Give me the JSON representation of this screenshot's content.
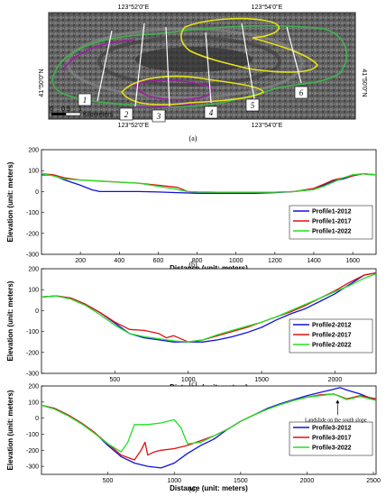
{
  "map": {
    "coord_top_left": "123°52'0\"E",
    "coord_top_right": "123°54'0\"E",
    "coord_bottom_left": "123°52'0\"E",
    "coord_bottom_right": "123°54'0\"E",
    "coord_left": "41°50'0\"N",
    "coord_right": "41°50'0\"N",
    "scale_ticks": [
      "0",
      "0.5",
      "1"
    ],
    "scale_unit": "Kilometers",
    "profile_labels": [
      "1",
      "2",
      "3",
      "4",
      "5",
      "6"
    ],
    "caption": "(a)",
    "colors": {
      "outline_2012": "#9b1fa0",
      "outline_2017": "#3cb44b",
      "outline_2022": "#e6e21a",
      "profile_line": "#ffffff"
    }
  },
  "chart_data": [
    {
      "type": "line",
      "caption": "(b)",
      "xlabel": "Distance (unit: meters)",
      "ylabel": "Elevation (unit: meters)",
      "xlim": [
        0,
        1720
      ],
      "ylim": [
        -300,
        200
      ],
      "yticks": [
        200,
        100,
        0,
        -100,
        -200,
        -300
      ],
      "xticks": [
        200,
        400,
        600,
        800,
        1000,
        1200,
        1400,
        1600
      ],
      "legend_position": "bottom-right",
      "series": [
        {
          "name": "Profile1-2012",
          "color": "#1010e0",
          "x": [
            0,
            60,
            120,
            200,
            260,
            300,
            400,
            500,
            600,
            700,
            800,
            900,
            1000,
            1100,
            1200,
            1300,
            1400,
            1450,
            1500,
            1550,
            1600,
            1650,
            1720
          ],
          "y": [
            80,
            78,
            55,
            30,
            8,
            0,
            0,
            0,
            -2,
            -5,
            -8,
            -8,
            -8,
            -8,
            -5,
            0,
            10,
            30,
            50,
            60,
            75,
            85,
            80
          ]
        },
        {
          "name": "Profile1-2017",
          "color": "#e01010",
          "x": [
            0,
            60,
            120,
            200,
            300,
            400,
            500,
            600,
            700,
            750,
            800,
            900,
            1000,
            1100,
            1200,
            1300,
            1400,
            1450,
            1500,
            1550,
            1600,
            1650,
            1720
          ],
          "y": [
            85,
            80,
            65,
            55,
            50,
            45,
            40,
            30,
            20,
            0,
            -2,
            -3,
            -3,
            -3,
            -3,
            0,
            15,
            35,
            55,
            65,
            75,
            85,
            80
          ]
        },
        {
          "name": "Profile1-2022",
          "color": "#20e020",
          "x": [
            0,
            60,
            120,
            200,
            300,
            400,
            500,
            600,
            700,
            750,
            800,
            900,
            1000,
            1100,
            1200,
            1300,
            1400,
            1450,
            1500,
            1550,
            1600,
            1650,
            1720
          ],
          "y": [
            85,
            75,
            60,
            55,
            50,
            45,
            40,
            25,
            10,
            0,
            -2,
            -3,
            -3,
            -3,
            -3,
            0,
            10,
            25,
            45,
            65,
            80,
            85,
            80
          ]
        }
      ]
    },
    {
      "type": "line",
      "caption": "(c)",
      "xlabel": "Distance (unit: meters)",
      "ylabel": "Elevation (unit: meters)",
      "xlim": [
        0,
        2280
      ],
      "ylim": [
        -300,
        200
      ],
      "yticks": [
        200,
        100,
        0,
        -100,
        -200,
        -300
      ],
      "xticks": [
        500,
        1000,
        1500,
        2000
      ],
      "legend_position": "bottom-right",
      "series": [
        {
          "name": "Profile2-2012",
          "color": "#1010e0",
          "x": [
            0,
            100,
            200,
            300,
            400,
            500,
            600,
            700,
            800,
            900,
            1000,
            1100,
            1200,
            1300,
            1400,
            1500,
            1600,
            1700,
            1800,
            1900,
            2000,
            2100,
            2200,
            2280
          ],
          "y": [
            65,
            70,
            60,
            30,
            -10,
            -60,
            -110,
            -130,
            -140,
            -150,
            -150,
            -150,
            -140,
            -125,
            -105,
            -80,
            -45,
            -15,
            10,
            45,
            80,
            125,
            170,
            180
          ]
        },
        {
          "name": "Profile2-2017",
          "color": "#e01010",
          "x": [
            0,
            100,
            200,
            300,
            400,
            500,
            600,
            700,
            800,
            850,
            900,
            1000,
            1100,
            1200,
            1300,
            1400,
            1500,
            1600,
            1700,
            1800,
            1900,
            2000,
            2100,
            2200,
            2280
          ],
          "y": [
            65,
            70,
            60,
            30,
            -10,
            -55,
            -90,
            -95,
            -110,
            -130,
            -120,
            -150,
            -140,
            -120,
            -100,
            -80,
            -55,
            -30,
            -5,
            25,
            60,
            95,
            135,
            170,
            180
          ]
        },
        {
          "name": "Profile2-2022",
          "color": "#20e020",
          "x": [
            0,
            100,
            200,
            300,
            400,
            500,
            600,
            700,
            800,
            900,
            1000,
            1100,
            1200,
            1300,
            1400,
            1500,
            1600,
            1700,
            1800,
            1900,
            2000,
            2100,
            2200,
            2280
          ],
          "y": [
            65,
            70,
            55,
            25,
            -20,
            -70,
            -110,
            -125,
            -135,
            -145,
            -150,
            -140,
            -115,
            -95,
            -75,
            -55,
            -30,
            0,
            30,
            60,
            90,
            120,
            155,
            175
          ]
        }
      ]
    },
    {
      "type": "line",
      "caption": "(d)",
      "xlabel": "Distance (unit: meters)",
      "ylabel": "Elevation (unit: meters)",
      "xlim": [
        0,
        2520
      ],
      "ylim": [
        -350,
        200
      ],
      "yticks": [
        200,
        100,
        0,
        -100,
        -200,
        -300
      ],
      "xticks": [
        500,
        1000,
        1500,
        2000,
        2500
      ],
      "legend_position": "bottom-right",
      "annotation": {
        "text": "Landslide on the south slope",
        "x": 2230,
        "y": 120
      },
      "series": [
        {
          "name": "Profile3-2012",
          "color": "#1010e0",
          "x": [
            0,
            100,
            200,
            300,
            400,
            500,
            600,
            700,
            800,
            900,
            1000,
            1100,
            1200,
            1300,
            1400,
            1500,
            1600,
            1700,
            1800,
            1900,
            2000,
            2100,
            2200,
            2250,
            2300,
            2400,
            2520
          ],
          "y": [
            80,
            60,
            20,
            -30,
            -90,
            -170,
            -240,
            -280,
            -300,
            -310,
            -280,
            -220,
            -170,
            -130,
            -70,
            -20,
            20,
            60,
            90,
            115,
            140,
            160,
            180,
            190,
            175,
            150,
            110
          ]
        },
        {
          "name": "Profile3-2017",
          "color": "#e01010",
          "x": [
            0,
            100,
            200,
            300,
            400,
            500,
            600,
            700,
            750,
            780,
            800,
            850,
            900,
            1000,
            1100,
            1200,
            1300,
            1400,
            1500,
            1600,
            1700,
            1800,
            1900,
            2000,
            2100,
            2200,
            2300,
            2400,
            2520
          ],
          "y": [
            80,
            60,
            20,
            -30,
            -90,
            -160,
            -230,
            -260,
            -200,
            -150,
            -230,
            -210,
            -200,
            -190,
            -170,
            -140,
            -110,
            -70,
            -20,
            20,
            55,
            85,
            110,
            130,
            145,
            150,
            120,
            140,
            120
          ]
        },
        {
          "name": "Profile3-2022",
          "color": "#20e020",
          "x": [
            0,
            100,
            200,
            300,
            400,
            500,
            600,
            650,
            700,
            800,
            900,
            1000,
            1050,
            1100,
            1200,
            1300,
            1400,
            1500,
            1600,
            1700,
            1800,
            1900,
            2000,
            2100,
            2200,
            2300,
            2400,
            2520
          ],
          "y": [
            80,
            55,
            15,
            -35,
            -95,
            -160,
            -210,
            -150,
            -40,
            -40,
            -30,
            -10,
            -60,
            -160,
            -150,
            -110,
            -70,
            -20,
            20,
            55,
            85,
            110,
            130,
            140,
            150,
            115,
            135,
            110
          ]
        }
      ]
    }
  ]
}
